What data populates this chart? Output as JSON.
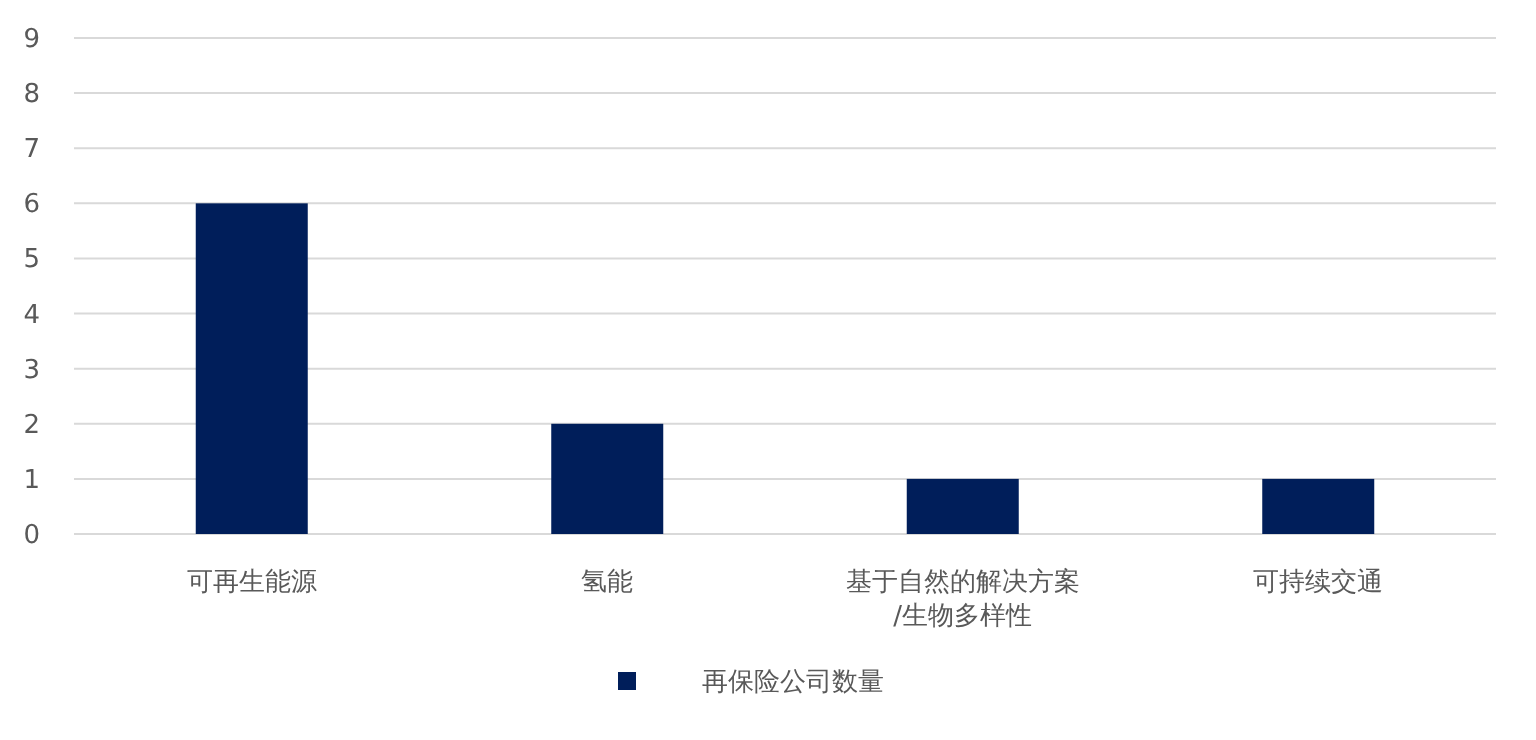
{
  "chart_data": {
    "type": "bar",
    "categories": [
      "可再生能源",
      "氢能",
      "基于自然的解决方案/生物多样性",
      "可持续交通"
    ],
    "series": [
      {
        "name": "再保险公司数量",
        "color": "#001e5a",
        "values": [
          6,
          2,
          1,
          1
        ]
      }
    ],
    "ylim": [
      0,
      9
    ],
    "yticks": [
      0,
      1,
      2,
      3,
      4,
      5,
      6,
      7,
      8,
      9
    ],
    "grid": "y",
    "legend": "bottom"
  }
}
